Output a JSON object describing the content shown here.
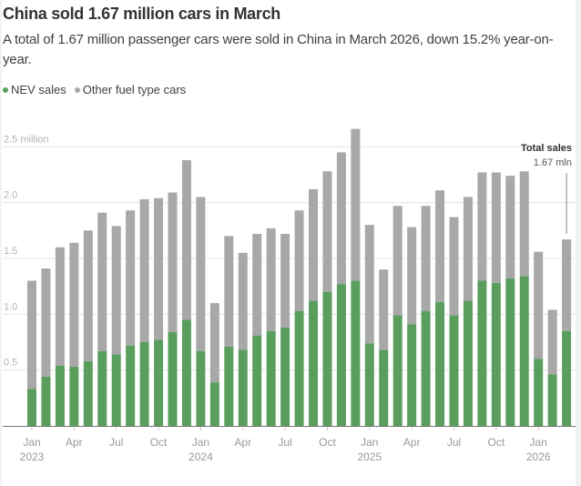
{
  "header": {
    "title": "China sold 1.67 million cars in March",
    "subtitle": "A total of 1.67 million passenger cars were sold in China in March 2026, down 15.2% year-on-year."
  },
  "legend": [
    {
      "label": "NEV sales",
      "color": "#5a9e5e"
    },
    {
      "label": "Other fuel type cars",
      "color": "#a8a8a8"
    }
  ],
  "annotation": {
    "title": "Total sales",
    "value": "1.67 mln"
  },
  "chart_data": {
    "type": "bar",
    "stacked": true,
    "title": "China sold 1.67 million cars in March",
    "subtitle": "A total of 1.67 million passenger cars were sold in China in March 2026, down 15.2% year-on-year.",
    "xlabel": "",
    "ylabel": "million",
    "ylim": [
      0,
      2.7
    ],
    "grid": true,
    "legend_position": "top-left",
    "yticks": [
      {
        "value": 0.5,
        "label": "0.5"
      },
      {
        "value": 1.0,
        "label": "1.0"
      },
      {
        "value": 1.5,
        "label": "1.5"
      },
      {
        "value": 2.0,
        "label": "2.0"
      },
      {
        "value": 2.5,
        "label": "2.5 million"
      }
    ],
    "xticks": [
      {
        "index": 0,
        "label": "Jan",
        "sub": "2023"
      },
      {
        "index": 3,
        "label": "Apr",
        "sub": ""
      },
      {
        "index": 6,
        "label": "Jul",
        "sub": ""
      },
      {
        "index": 9,
        "label": "Oct",
        "sub": ""
      },
      {
        "index": 12,
        "label": "Jan",
        "sub": "2024"
      },
      {
        "index": 15,
        "label": "Apr",
        "sub": ""
      },
      {
        "index": 18,
        "label": "Jul",
        "sub": ""
      },
      {
        "index": 21,
        "label": "Oct",
        "sub": ""
      },
      {
        "index": 24,
        "label": "Jan",
        "sub": "2025"
      },
      {
        "index": 27,
        "label": "Apr",
        "sub": ""
      },
      {
        "index": 30,
        "label": "Jul",
        "sub": ""
      },
      {
        "index": 33,
        "label": "Oct",
        "sub": ""
      },
      {
        "index": 36,
        "label": "Jan",
        "sub": "2026"
      }
    ],
    "categories": [
      "2023-01",
      "2023-02",
      "2023-03",
      "2023-04",
      "2023-05",
      "2023-06",
      "2023-07",
      "2023-08",
      "2023-09",
      "2023-10",
      "2023-11",
      "2023-12",
      "2024-01",
      "2024-02",
      "2024-03",
      "2024-04",
      "2024-05",
      "2024-06",
      "2024-07",
      "2024-08",
      "2024-09",
      "2024-10",
      "2024-11",
      "2024-12",
      "2025-01",
      "2025-02",
      "2025-03",
      "2025-04",
      "2025-05",
      "2025-06",
      "2025-07",
      "2025-08",
      "2025-09",
      "2025-10",
      "2025-11",
      "2025-12",
      "2026-01",
      "2026-02",
      "2026-03"
    ],
    "series": [
      {
        "name": "NEV sales",
        "color": "#5a9e5e",
        "values": [
          0.33,
          0.44,
          0.54,
          0.53,
          0.58,
          0.67,
          0.64,
          0.72,
          0.75,
          0.77,
          0.84,
          0.95,
          0.67,
          0.39,
          0.71,
          0.68,
          0.81,
          0.85,
          0.88,
          1.03,
          1.12,
          1.2,
          1.27,
          1.3,
          0.74,
          0.68,
          0.99,
          0.91,
          1.03,
          1.11,
          0.99,
          1.12,
          1.3,
          1.28,
          1.32,
          1.34,
          0.6,
          0.46,
          0.85
        ]
      },
      {
        "name": "Other fuel type cars",
        "color": "#a8a8a8",
        "values": [
          0.97,
          0.97,
          1.06,
          1.11,
          1.17,
          1.24,
          1.15,
          1.21,
          1.28,
          1.27,
          1.25,
          1.43,
          1.38,
          0.71,
          0.99,
          0.87,
          0.91,
          0.92,
          0.84,
          0.9,
          1.0,
          1.08,
          1.18,
          1.36,
          1.06,
          0.72,
          0.98,
          0.87,
          0.94,
          1.0,
          0.88,
          0.93,
          0.97,
          0.99,
          0.92,
          0.94,
          0.96,
          0.58,
          0.82
        ]
      }
    ],
    "totals": [
      1.3,
      1.41,
      1.6,
      1.64,
      1.75,
      1.91,
      1.79,
      1.93,
      2.03,
      2.04,
      2.09,
      2.38,
      2.05,
      1.1,
      1.7,
      1.55,
      1.72,
      1.77,
      1.72,
      1.93,
      2.12,
      2.28,
      2.45,
      2.66,
      1.8,
      1.4,
      1.97,
      1.78,
      1.97,
      2.11,
      1.87,
      2.05,
      2.27,
      2.27,
      2.24,
      2.28,
      1.56,
      1.04,
      1.67
    ]
  }
}
